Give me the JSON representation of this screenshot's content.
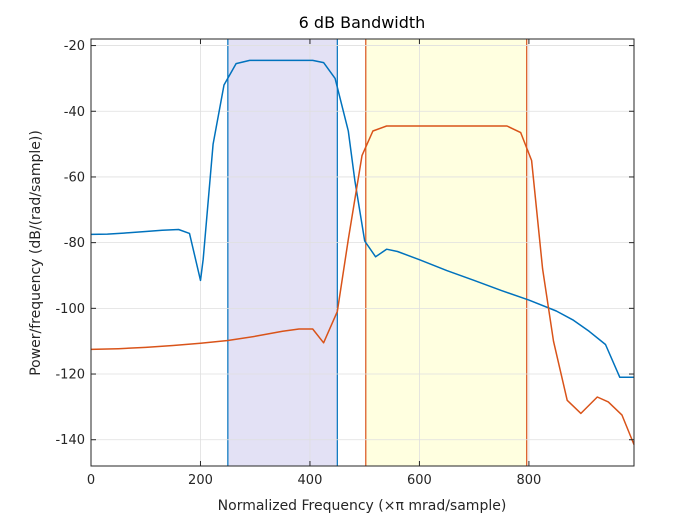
{
  "chart_data": {
    "type": "line",
    "title": "6 dB Bandwidth",
    "xlabel": "Normalized Frequency  (×π mrad/sample)",
    "ylabel": "Power/frequency (dB/(rad/sample))",
    "xlim": [
      0,
      992
    ],
    "ylim": [
      -148,
      -18
    ],
    "xticks": [
      0,
      200,
      400,
      600,
      800
    ],
    "yticks": [
      -140,
      -120,
      -100,
      -80,
      -60,
      -40,
      -20
    ],
    "grid": true,
    "colors": {
      "series_1": "#0072BD",
      "series_2": "#D95319",
      "band_1_fill": "#E3E1F5",
      "band_2_fill": "#FFFFE0",
      "grid": "#DFDFDF",
      "axes": "#262626"
    },
    "bands": [
      {
        "x0": 250,
        "x1": 450,
        "series": 0
      },
      {
        "x0": 502,
        "x1": 796,
        "series": 1
      }
    ],
    "series": [
      {
        "x": [
          0,
          30,
          60,
          100,
          130,
          160,
          180,
          200,
          205,
          223,
          243,
          265,
          290,
          320,
          360,
          390,
          405,
          425,
          446,
          470,
          482,
          500,
          520,
          540,
          560,
          600,
          650,
          700,
          750,
          800,
          850,
          880,
          910,
          940,
          966,
          992
        ],
        "values": [
          -77.5,
          -77.4,
          -77.1,
          -76.6,
          -76.2,
          -76,
          -77.2,
          -91.5,
          -85,
          -50,
          -32,
          -25.5,
          -24.5,
          -24.5,
          -24.5,
          -24.5,
          -24.5,
          -25.2,
          -30,
          -46,
          -61,
          -79.5,
          -84.3,
          -82,
          -82.7,
          -85.2,
          -88.5,
          -91.5,
          -94.6,
          -97.5,
          -100.8,
          -103.5,
          -107,
          -111,
          -121,
          -121
        ]
      },
      {
        "x": [
          0,
          50,
          100,
          150,
          200,
          250,
          300,
          350,
          380,
          405,
          425,
          450,
          470,
          495,
          515,
          540,
          580,
          640,
          700,
          760,
          785,
          805,
          825,
          845,
          870,
          895,
          925,
          945,
          970,
          992
        ],
        "values": [
          -112.5,
          -112.3,
          -111.9,
          -111.3,
          -110.6,
          -109.8,
          -108.5,
          -107,
          -106.3,
          -106.3,
          -110.5,
          -101,
          -79,
          -53.5,
          -46,
          -44.5,
          -44.5,
          -44.5,
          -44.5,
          -44.5,
          -46.5,
          -55,
          -88,
          -110,
          -128,
          -132,
          -127,
          -128.5,
          -132.5,
          -141.5
        ]
      }
    ]
  }
}
